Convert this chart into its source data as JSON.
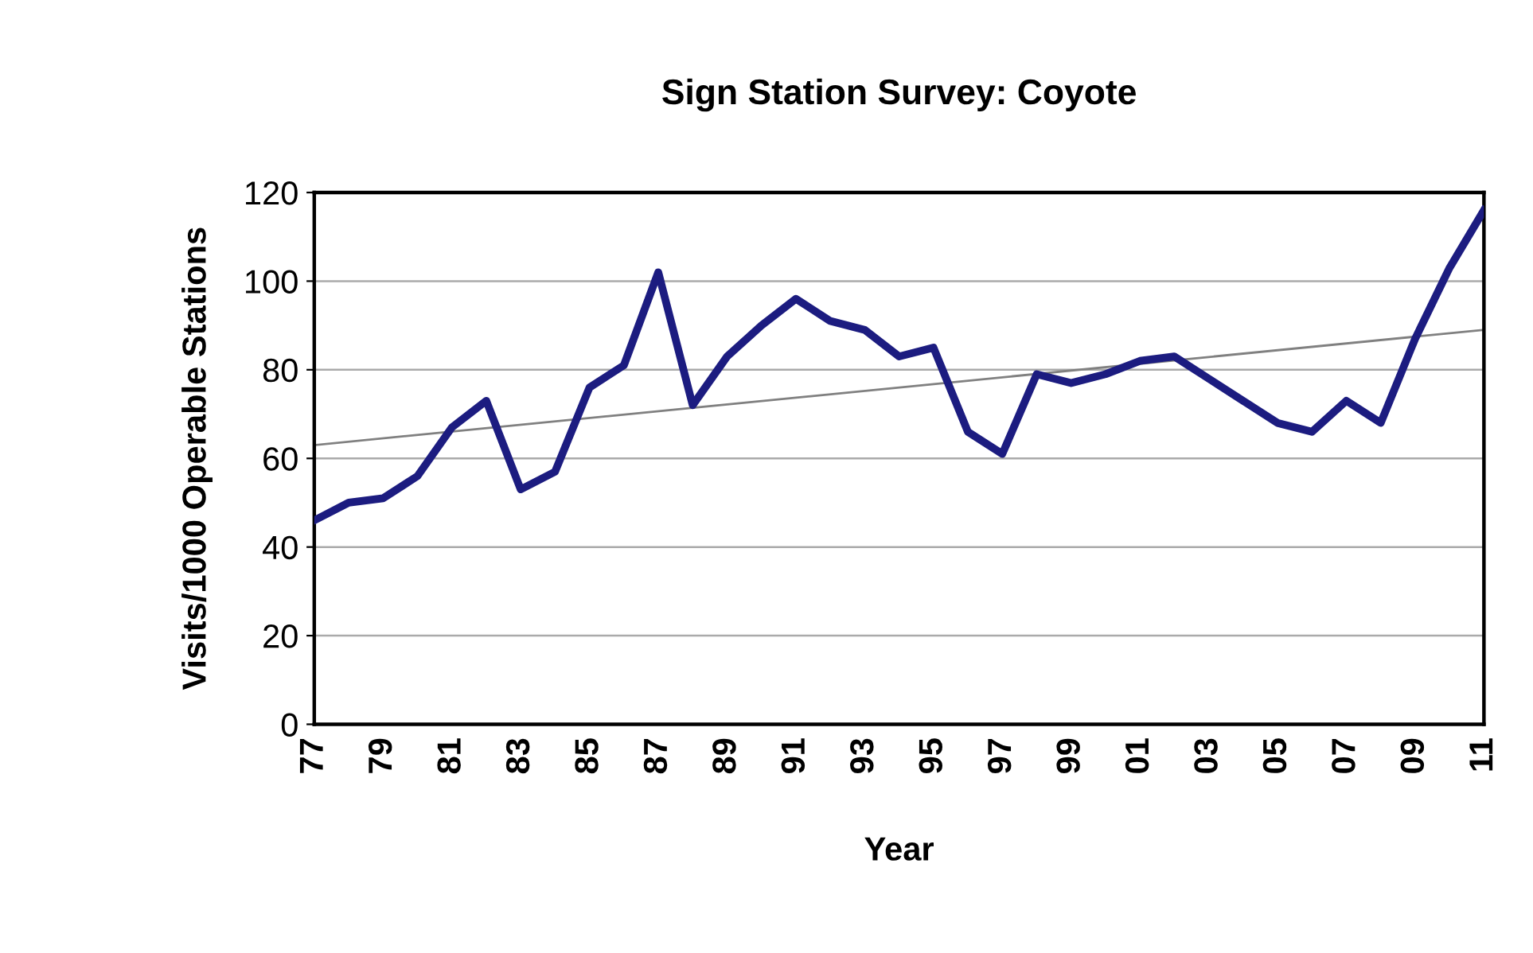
{
  "chart_data": {
    "type": "line",
    "title": "Sign Station Survey: Coyote",
    "xlabel": "Year",
    "ylabel": "Visits/1000 Operable Stations",
    "categories": [
      "77",
      null,
      "79",
      null,
      "81",
      null,
      "83",
      null,
      "85",
      null,
      "87",
      null,
      "89",
      null,
      "91",
      null,
      "93",
      null,
      "95",
      null,
      "97",
      null,
      "99",
      null,
      "01",
      null,
      "03",
      null,
      "05",
      null,
      "07",
      null,
      "09",
      null,
      "11"
    ],
    "series": [
      {
        "color": "#1c1c80",
        "values": [
          46,
          50,
          51,
          56,
          67,
          73,
          53,
          57,
          76,
          81,
          102,
          72,
          83,
          90,
          96,
          91,
          89,
          83,
          85,
          66,
          61,
          79,
          77,
          79,
          82,
          83,
          78,
          73,
          68,
          66,
          73,
          68,
          87,
          103,
          116
        ]
      },
      {
        "type": "line",
        "color": "#808080",
        "x": [
          "77",
          "11"
        ],
        "values": [
          63,
          89
        ]
      }
    ],
    "ylim": [
      0,
      120
    ],
    "yticks": [
      0,
      20,
      40,
      60,
      80,
      100,
      120
    ],
    "grid": "y"
  }
}
